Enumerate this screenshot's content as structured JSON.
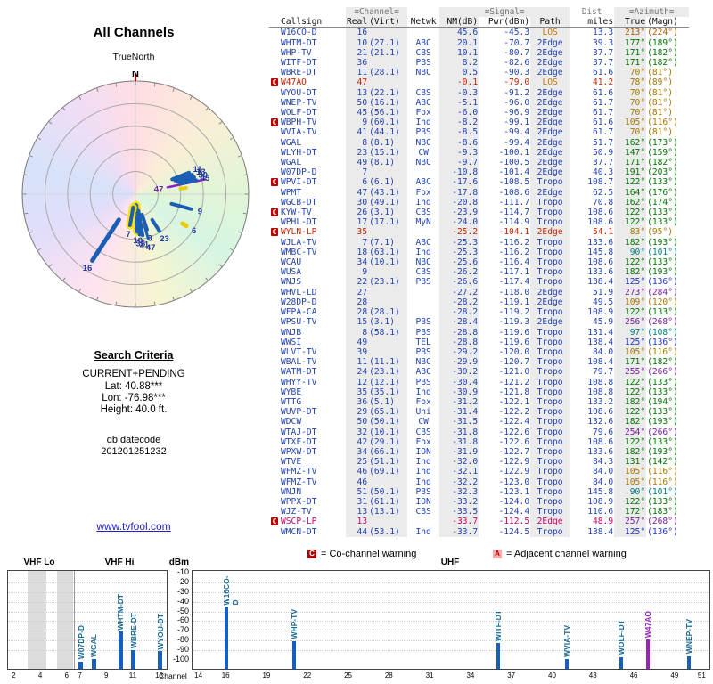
{
  "radar": {
    "title": "All Channels",
    "orientation_label": "TrueNorth",
    "north_label": "N",
    "spokes": [
      {
        "label": "16",
        "angle": 213,
        "r1": 0.27,
        "r2": 0.7,
        "w": 5
      },
      {
        "label": "10",
        "angle": 177,
        "r1": 0.1,
        "r2": 0.33,
        "w": 5,
        "halo": true
      },
      {
        "label": "7",
        "angle": 190,
        "r1": 0.12,
        "r2": 0.28,
        "w": 4,
        "halo": true
      },
      {
        "label": "21",
        "angle": 170,
        "r1": 0.15,
        "r2": 0.37,
        "w": 4
      },
      {
        "label": "36",
        "angle": 174,
        "r1": 0.17,
        "r2": 0.36,
        "w": 4
      },
      {
        "label": "8",
        "angle": 162,
        "r1": 0.19,
        "r2": 0.33,
        "w": 4
      },
      {
        "label": "23",
        "angle": 147,
        "r1": 0.27,
        "r2": 0.39,
        "w": 4
      },
      {
        "label": "47",
        "angle": 164,
        "r1": 0.3,
        "r2": 0.41,
        "w": 3
      },
      {
        "label": "6",
        "angle": 122,
        "r1": 0.49,
        "r2": 0.53,
        "w": 5,
        "color": "#e8cc00"
      },
      {
        "label": "9",
        "angle": 105,
        "r1": 0.33,
        "r2": 0.51,
        "w": 4
      },
      {
        "label": "",
        "angle": 83,
        "r1": 0.4,
        "r2": 0.45,
        "w": 4,
        "color": "#e8cc00"
      },
      {
        "label": "47",
        "angle": 78,
        "r1": 0.29,
        "r2": 0.63,
        "w": 2.5,
        "color": "#8a22cc",
        "label_at_inner": true,
        "label_color": "#7722aa"
      },
      {
        "label": "11",
        "angle": 68,
        "r1": 0.35,
        "r2": 0.51,
        "w": 4
      },
      {
        "label": "13",
        "angle": 71,
        "r1": 0.37,
        "r2": 0.53,
        "w": 4
      },
      {
        "label": "50",
        "angle": 74,
        "r1": 0.39,
        "r2": 0.54,
        "w": 4
      },
      {
        "label": "45",
        "angle": 77,
        "r1": 0.41,
        "r2": 0.55,
        "w": 4
      }
    ]
  },
  "search": {
    "title": "Search Criteria",
    "mode": "CURRENT+PENDING",
    "lat": "Lat: 40.88***",
    "lon": "Lon: -76.98***",
    "height": "Height: 40.0 ft.",
    "datecode_label": "db datecode",
    "datecode": "201201251232"
  },
  "link": "www.tvfool.com",
  "table": {
    "group_headers": {
      "channel": "≡Channel≡",
      "signal": "≡Signal≡",
      "dist": "Dist",
      "azimuth": "≡Azimuth≡"
    },
    "col_headers": {
      "callsign": "Callsign",
      "real": "Real",
      "virt": "(Virt)",
      "netwk": "Netwk",
      "nm": "NM(dB)",
      "pwr": "Pwr(dBm)",
      "path": "Path",
      "miles": "miles",
      "true": "True",
      "magn": "(Magn)"
    },
    "default_text_color": "#2343b3",
    "rows": [
      {
        "m": "",
        "cs": "W16CO-D",
        "re": "16",
        "vi": "",
        "nw": "",
        "nm": "45.6",
        "pw": "-45.3",
        "pa": "LOS",
        "pc": "#cc7700",
        "di": "13.3",
        "at": "213°",
        "am": "(224°)",
        "ac": "#b05a00"
      },
      {
        "m": "",
        "cs": "WHTM-DT",
        "re": "10",
        "vi": "(27.1)",
        "nw": "ABC",
        "nm": "20.1",
        "pw": "-70.7",
        "pa": "2Edge",
        "di": "39.3",
        "at": "177°",
        "am": "(189°)",
        "ac": "#007700"
      },
      {
        "m": "",
        "cs": "WHP-TV",
        "re": "21",
        "vi": "(21.1)",
        "nw": "CBS",
        "nm": "10.1",
        "pw": "-80.7",
        "pa": "2Edge",
        "di": "37.7",
        "at": "171°",
        "am": "(182°)",
        "ac": "#007700"
      },
      {
        "m": "",
        "cs": "WITF-DT",
        "re": "36",
        "vi": "",
        "nw": "PBS",
        "nm": "8.2",
        "pw": "-82.6",
        "pa": "2Edge",
        "di": "37.7",
        "at": "171°",
        "am": "(182°)",
        "ac": "#007700"
      },
      {
        "m": "",
        "cs": "WBRE-DT",
        "re": "11",
        "vi": "(28.1)",
        "nw": "NBC",
        "nm": "0.5",
        "pw": "-90.3",
        "pa": "2Edge",
        "di": "61.6",
        "at": "70°",
        "am": "(81°)",
        "ac": "#a87800"
      },
      {
        "m": "C",
        "cs": "W47AO",
        "re": "47",
        "vi": "",
        "nw": "",
        "nm": "-0.1",
        "pw": "-79.0",
        "pa": "LOS",
        "pc": "#cc7700",
        "di": "41.2",
        "at": "78°",
        "am": "(89°)",
        "ac": "#a87800",
        "c": "#cc2200"
      },
      {
        "m": "",
        "cs": "WYOU-DT",
        "re": "13",
        "vi": "(22.1)",
        "nw": "CBS",
        "nm": "-0.3",
        "pw": "-91.2",
        "pa": "2Edge",
        "di": "61.6",
        "at": "70°",
        "am": "(81°)",
        "ac": "#a87800"
      },
      {
        "m": "",
        "cs": "WNEP-TV",
        "re": "50",
        "vi": "(16.1)",
        "nw": "ABC",
        "nm": "-5.1",
        "pw": "-96.0",
        "pa": "2Edge",
        "di": "61.7",
        "at": "70°",
        "am": "(81°)",
        "ac": "#a87800"
      },
      {
        "m": "",
        "cs": "WOLF-DT",
        "re": "45",
        "vi": "(56.1)",
        "nw": "Fox",
        "nm": "-6.0",
        "pw": "-96.9",
        "pa": "2Edge",
        "di": "61.7",
        "at": "70°",
        "am": "(81°)",
        "ac": "#a87800"
      },
      {
        "m": "C",
        "cs": "WBPH-TV",
        "re": "9",
        "vi": "(60.1)",
        "nw": "Ind",
        "nm": "-8.2",
        "pw": "-99.1",
        "pa": "2Edge",
        "di": "61.6",
        "at": "105°",
        "am": "(116°)",
        "ac": "#a87800"
      },
      {
        "m": "",
        "cs": "WVIA-TV",
        "re": "41",
        "vi": "(44.1)",
        "nw": "PBS",
        "nm": "-8.5",
        "pw": "-99.4",
        "pa": "2Edge",
        "di": "61.7",
        "at": "70°",
        "am": "(81°)",
        "ac": "#a87800"
      },
      {
        "m": "",
        "cs": "WGAL",
        "re": "8",
        "vi": "(8.1)",
        "nw": "NBC",
        "nm": "-8.6",
        "pw": "-99.4",
        "pa": "2Edge",
        "di": "51.7",
        "at": "162°",
        "am": "(173°)",
        "ac": "#007700"
      },
      {
        "m": "",
        "cs": "WLYH-DT",
        "re": "23",
        "vi": "(15.1)",
        "nw": "CW",
        "nm": "-9.3",
        "pw": "-100.1",
        "pa": "2Edge",
        "di": "50.9",
        "at": "147°",
        "am": "(159°)",
        "ac": "#007700"
      },
      {
        "m": "",
        "cs": "WGAL",
        "re": "49",
        "vi": "(8.1)",
        "nw": "NBC",
        "nm": "-9.7",
        "pw": "-100.5",
        "pa": "2Edge",
        "di": "37.7",
        "at": "171°",
        "am": "(182°)",
        "ac": "#007700"
      },
      {
        "m": "",
        "cs": "W07DP-D",
        "re": "7",
        "vi": "",
        "nw": "",
        "nm": "-10.8",
        "pw": "-101.4",
        "pa": "2Edge",
        "di": "40.3",
        "at": "191°",
        "am": "(203°)",
        "ac": "#007700"
      },
      {
        "m": "C",
        "cs": "WPVI-DT",
        "re": "6",
        "vi": "(6.1)",
        "nw": "ABC",
        "nm": "-17.6",
        "pw": "-108.5",
        "pa": "Tropo",
        "di": "108.7",
        "at": "122°",
        "am": "(133°)",
        "ac": "#007700"
      },
      {
        "m": "",
        "cs": "WPMT",
        "re": "47",
        "vi": "(43.1)",
        "nw": "Fox",
        "nm": "-17.8",
        "pw": "-108.6",
        "pa": "2Edge",
        "di": "62.5",
        "at": "164°",
        "am": "(176°)",
        "ac": "#007700"
      },
      {
        "m": "",
        "cs": "WGCB-DT",
        "re": "30",
        "vi": "(49.1)",
        "nw": "Ind",
        "nm": "-20.8",
        "pw": "-111.7",
        "pa": "Tropo",
        "di": "70.8",
        "at": "162°",
        "am": "(174°)",
        "ac": "#007700"
      },
      {
        "m": "C",
        "cs": "KYW-TV",
        "re": "26",
        "vi": "(3.1)",
        "nw": "CBS",
        "nm": "-23.9",
        "pw": "-114.7",
        "pa": "Tropo",
        "di": "108.6",
        "at": "122°",
        "am": "(133°)",
        "ac": "#007700"
      },
      {
        "m": "",
        "cs": "WPHL-DT",
        "re": "17",
        "vi": "(17.1)",
        "nw": "MyN",
        "nm": "-24.0",
        "pw": "-114.9",
        "pa": "Tropo",
        "di": "108.6",
        "at": "122°",
        "am": "(133°)",
        "ac": "#007700"
      },
      {
        "m": "C",
        "cs": "WYLN-LP",
        "re": "35",
        "vi": "",
        "nw": "",
        "nm": "-25.2",
        "pw": "-104.1",
        "pa": "2Edge",
        "pc": "#cc2200",
        "di": "54.1",
        "at": "83°",
        "am": "(95°)",
        "ac": "#a87800",
        "c": "#cc2200"
      },
      {
        "m": "",
        "cs": "WJLA-TV",
        "re": "7",
        "vi": "(7.1)",
        "nw": "ABC",
        "nm": "-25.3",
        "pw": "-116.2",
        "pa": "Tropo",
        "di": "133.6",
        "at": "182°",
        "am": "(193°)",
        "ac": "#007700"
      },
      {
        "m": "",
        "cs": "WMBC-TV",
        "re": "18",
        "vi": "(63.1)",
        "nw": "Ind",
        "nm": "-25.3",
        "pw": "-116.2",
        "pa": "Tropo",
        "di": "145.8",
        "at": "90°",
        "am": "(101°)",
        "ac": "#008080"
      },
      {
        "m": "",
        "cs": "WCAU",
        "re": "34",
        "vi": "(10.1)",
        "nw": "NBC",
        "nm": "-25.6",
        "pw": "-116.4",
        "pa": "Tropo",
        "di": "108.6",
        "at": "122°",
        "am": "(133°)",
        "ac": "#007700"
      },
      {
        "m": "",
        "cs": "WUSA",
        "re": "9",
        "vi": "",
        "nw": "CBS",
        "nm": "-26.2",
        "pw": "-117.1",
        "pa": "Tropo",
        "di": "133.6",
        "at": "182°",
        "am": "(193°)",
        "ac": "#007700"
      },
      {
        "m": "",
        "cs": "WNJS",
        "re": "22",
        "vi": "(23.1)",
        "nw": "PBS",
        "nm": "-26.6",
        "pw": "-117.4",
        "pa": "Tropo",
        "di": "138.4",
        "at": "125°",
        "am": "(136°)",
        "ac": "#2233cc"
      },
      {
        "m": "",
        "cs": "WHVL-LD",
        "re": "27",
        "vi": "",
        "nw": "",
        "nm": "-27.2",
        "pw": "-118.0",
        "pa": "2Edge",
        "di": "51.9",
        "at": "273°",
        "am": "(284°)",
        "ac": "#7a1fa2"
      },
      {
        "m": "",
        "cs": "W28DP-D",
        "re": "28",
        "vi": "",
        "nw": "",
        "nm": "-28.2",
        "pw": "-119.1",
        "pa": "2Edge",
        "di": "49.5",
        "at": "109°",
        "am": "(120°)",
        "ac": "#a87800"
      },
      {
        "m": "",
        "cs": "WFPA-CA",
        "re": "28",
        "vi": "(28.1)",
        "nw": "",
        "nm": "-28.2",
        "pw": "-119.2",
        "pa": "Tropo",
        "di": "108.9",
        "at": "122°",
        "am": "(133°)",
        "ac": "#007700"
      },
      {
        "m": "",
        "cs": "WPSU-TV",
        "re": "15",
        "vi": "(3.1)",
        "nw": "PBS",
        "nm": "-28.4",
        "pw": "-119.3",
        "pa": "2Edge",
        "di": "45.9",
        "at": "256°",
        "am": "(268°)",
        "ac": "#7a1fa2"
      },
      {
        "m": "",
        "cs": "WNJB",
        "re": "8",
        "vi": "(58.1)",
        "nw": "PBS",
        "nm": "-28.8",
        "pw": "-119.6",
        "pa": "Tropo",
        "di": "131.4",
        "at": "97°",
        "am": "(108°)",
        "ac": "#008080"
      },
      {
        "m": "",
        "cs": "WWSI",
        "re": "49",
        "vi": "",
        "nw": "TEL",
        "nm": "-28.8",
        "pw": "-119.6",
        "pa": "Tropo",
        "di": "138.4",
        "at": "125°",
        "am": "(136°)",
        "ac": "#2233cc"
      },
      {
        "m": "",
        "cs": "WLVT-TV",
        "re": "39",
        "vi": "",
        "nw": "PBS",
        "nm": "-29.2",
        "pw": "-120.0",
        "pa": "Tropo",
        "di": "84.0",
        "at": "105°",
        "am": "(116°)",
        "ac": "#a87800"
      },
      {
        "m": "",
        "cs": "WBAL-TV",
        "re": "11",
        "vi": "(11.1)",
        "nw": "NBC",
        "nm": "-29.9",
        "pw": "-120.7",
        "pa": "Tropo",
        "di": "108.4",
        "at": "171°",
        "am": "(182°)",
        "ac": "#007700"
      },
      {
        "m": "",
        "cs": "WATM-DT",
        "re": "24",
        "vi": "(23.1)",
        "nw": "ABC",
        "nm": "-30.2",
        "pw": "-121.0",
        "pa": "Tropo",
        "di": "79.7",
        "at": "255°",
        "am": "(266°)",
        "ac": "#7a1fa2"
      },
      {
        "m": "",
        "cs": "WHYY-TV",
        "re": "12",
        "vi": "(12.1)",
        "nw": "PBS",
        "nm": "-30.4",
        "pw": "-121.2",
        "pa": "Tropo",
        "di": "108.8",
        "at": "122°",
        "am": "(133°)",
        "ac": "#007700"
      },
      {
        "m": "",
        "cs": "WYBE",
        "re": "35",
        "vi": "(35.1)",
        "nw": "Ind",
        "nm": "-30.9",
        "pw": "-121.8",
        "pa": "Tropo",
        "di": "108.8",
        "at": "122°",
        "am": "(133°)",
        "ac": "#007700"
      },
      {
        "m": "",
        "cs": "WTTG",
        "re": "36",
        "vi": "(5.1)",
        "nw": "Fox",
        "nm": "-31.2",
        "pw": "-122.1",
        "pa": "Tropo",
        "di": "133.2",
        "at": "182°",
        "am": "(194°)",
        "ac": "#007700"
      },
      {
        "m": "",
        "cs": "WUVP-DT",
        "re": "29",
        "vi": "(65.1)",
        "nw": "Uni",
        "nm": "-31.4",
        "pw": "-122.2",
        "pa": "Tropo",
        "di": "108.6",
        "at": "122°",
        "am": "(133°)",
        "ac": "#007700"
      },
      {
        "m": "",
        "cs": "WDCW",
        "re": "50",
        "vi": "(50.1)",
        "nw": "CW",
        "nm": "-31.5",
        "pw": "-122.4",
        "pa": "Tropo",
        "di": "132.6",
        "at": "182°",
        "am": "(193°)",
        "ac": "#007700"
      },
      {
        "m": "",
        "cs": "WTAJ-DT",
        "re": "32",
        "vi": "(10.1)",
        "nw": "CBS",
        "nm": "-31.8",
        "pw": "-122.6",
        "pa": "Tropo",
        "di": "79.6",
        "at": "254°",
        "am": "(266°)",
        "ac": "#7a1fa2"
      },
      {
        "m": "",
        "cs": "WTXF-DT",
        "re": "42",
        "vi": "(29.1)",
        "nw": "Fox",
        "nm": "-31.8",
        "pw": "-122.6",
        "pa": "Tropo",
        "di": "108.6",
        "at": "122°",
        "am": "(133°)",
        "ac": "#007700"
      },
      {
        "m": "",
        "cs": "WPXW-DT",
        "re": "34",
        "vi": "(66.1)",
        "nw": "ION",
        "nm": "-31.9",
        "pw": "-122.7",
        "pa": "Tropo",
        "di": "133.6",
        "at": "182°",
        "am": "(193°)",
        "ac": "#007700"
      },
      {
        "m": "",
        "cs": "WTVE",
        "re": "25",
        "vi": "(51.1)",
        "nw": "Ind",
        "nm": "-32.0",
        "pw": "-122.9",
        "pa": "Tropo",
        "di": "84.3",
        "at": "131°",
        "am": "(142°)",
        "ac": "#007700"
      },
      {
        "m": "",
        "cs": "WFMZ-TV",
        "re": "46",
        "vi": "(69.1)",
        "nw": "Ind",
        "nm": "-32.1",
        "pw": "-122.9",
        "pa": "Tropo",
        "di": "84.0",
        "at": "105°",
        "am": "(116°)",
        "ac": "#a87800"
      },
      {
        "m": "",
        "cs": "WFMZ-TV",
        "re": "46",
        "vi": "",
        "nw": "Ind",
        "nm": "-32.2",
        "pw": "-123.0",
        "pa": "Tropo",
        "di": "84.0",
        "at": "105°",
        "am": "(116°)",
        "ac": "#a87800"
      },
      {
        "m": "",
        "cs": "WNJN",
        "re": "51",
        "vi": "(50.1)",
        "nw": "PBS",
        "nm": "-32.3",
        "pw": "-123.1",
        "pa": "Tropo",
        "di": "145.8",
        "at": "90°",
        "am": "(101°)",
        "ac": "#008080"
      },
      {
        "m": "",
        "cs": "WPPX-DT",
        "re": "31",
        "vi": "(61.1)",
        "nw": "ION",
        "nm": "-33.2",
        "pw": "-124.0",
        "pa": "Tropo",
        "di": "108.9",
        "at": "122°",
        "am": "(133°)",
        "ac": "#007700"
      },
      {
        "m": "",
        "cs": "WJZ-TV",
        "re": "13",
        "vi": "(13.1)",
        "nw": "CBS",
        "nm": "-33.5",
        "pw": "-124.4",
        "pa": "Tropo",
        "di": "110.6",
        "at": "172°",
        "am": "(183°)",
        "ac": "#007700"
      },
      {
        "m": "C",
        "cs": "WSCP-LP",
        "re": "13",
        "vi": "",
        "nw": "",
        "nm": "-33.7",
        "pw": "-112.5",
        "pa": "2Edge",
        "pc": "#cc0066",
        "di": "48.9",
        "at": "257°",
        "am": "(268°)",
        "ac": "#7a1fa2",
        "c": "#cc0066"
      },
      {
        "m": "",
        "cs": "WMCN-DT",
        "re": "44",
        "vi": "(53.1)",
        "nw": "Ind",
        "nm": "-33.7",
        "pw": "-124.5",
        "pa": "Tropo",
        "di": "138.4",
        "at": "125°",
        "am": "(136°)",
        "ac": "#2233cc"
      }
    ]
  },
  "legend": {
    "co": {
      "symbol": "C",
      "text": "= Co-channel warning",
      "box_bg": "#aa0000",
      "box_fg": "#ffffff"
    },
    "adj": {
      "symbol": "A",
      "text": "= Adjacent channel warning",
      "box_bg": "#ffaaaa",
      "box_fg": "#aa0000"
    }
  },
  "bottom_chart": {
    "type": "bar",
    "dbm_label": "dBm",
    "x_label": "Channel",
    "band_labels": {
      "vhf_lo": "VHF Lo",
      "vhf_hi": "VHF Hi",
      "uhf": "UHF"
    },
    "dbm_ticks": [
      -10,
      -20,
      -30,
      -40,
      -50,
      -60,
      -70,
      -80,
      -90,
      -100
    ],
    "ylim": [
      -10,
      -100
    ],
    "bar_color": "#1560bd",
    "vhf": {
      "ch_min": 2,
      "ch_max": 13,
      "tick_labels": [
        2,
        4,
        6,
        7,
        9,
        11,
        13
      ],
      "divider_ch": 6.5,
      "stripes": [
        [
          3.0,
          4.4
        ],
        [
          5.2,
          6.4
        ]
      ],
      "bars": [
        {
          "ch": 7,
          "dbm": -101.4,
          "label": "W07DP-D"
        },
        {
          "ch": 8,
          "dbm": -99.4,
          "label": "WGAL"
        },
        {
          "ch": 10,
          "dbm": -70.7,
          "label": "WHTM-DT"
        },
        {
          "ch": 11,
          "dbm": -90.3,
          "label": "WBRE-DT"
        },
        {
          "ch": 13,
          "dbm": -91.2,
          "label": "WYOU-DT"
        }
      ]
    },
    "uhf": {
      "ch_min": 14,
      "ch_max": 51,
      "tick_labels": [
        14,
        16,
        19,
        22,
        25,
        28,
        31,
        34,
        37,
        40,
        43,
        46,
        49,
        51
      ],
      "stripes": [],
      "bars": [
        {
          "ch": 16,
          "dbm": -45.3,
          "label": "W16CO-D"
        },
        {
          "ch": 21,
          "dbm": -80.7,
          "label": "WHP-TV"
        },
        {
          "ch": 36,
          "dbm": -82.6,
          "label": "WITF-DT"
        },
        {
          "ch": 41,
          "dbm": -99.4,
          "label": "WVIA-TV"
        },
        {
          "ch": 45,
          "dbm": -96.9,
          "label": "WOLF-DT"
        },
        {
          "ch": 47,
          "dbm": -79.0,
          "label": "W47AO",
          "color": "#9922bb"
        },
        {
          "ch": 50,
          "dbm": -96.0,
          "label": "WNEP-TV"
        }
      ]
    }
  }
}
